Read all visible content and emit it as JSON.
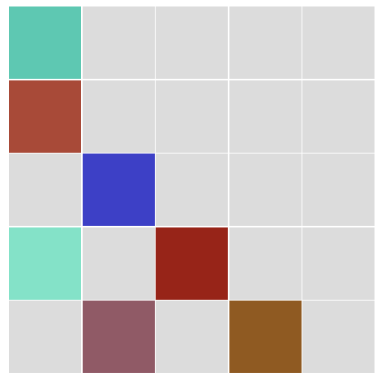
{
  "board": {
    "rows": 5,
    "cols": 5,
    "empty_color": "#dcdcdc",
    "cells": [
      [
        "#5ec8b2",
        null,
        null,
        null,
        null
      ],
      [
        "#a84a38",
        null,
        null,
        null,
        null
      ],
      [
        null,
        "#3d40c6",
        null,
        null,
        null
      ],
      [
        "#84e2c8",
        null,
        "#972418",
        null,
        null
      ],
      [
        null,
        "#905a66",
        null,
        "#8f5a22",
        null
      ]
    ]
  }
}
